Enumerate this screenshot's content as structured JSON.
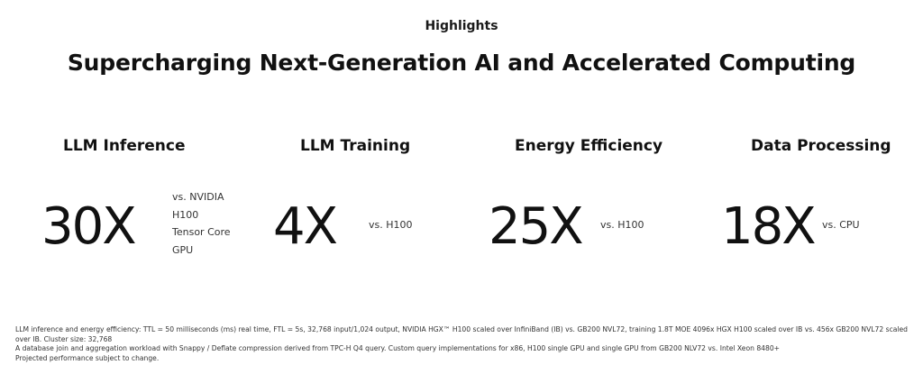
{
  "header": {
    "eyebrow": "Highlights",
    "headline": "Supercharging Next-Generation AI and Accelerated Computing"
  },
  "metrics": [
    {
      "title": "LLM Inference",
      "value": "30X",
      "compare": "vs. NVIDIA H100 Tensor Core GPU"
    },
    {
      "title": "LLM Training",
      "value": "4X",
      "compare": "vs. H100"
    },
    {
      "title": "Energy Efficiency",
      "value": "25X",
      "compare": "vs. H100"
    },
    {
      "title": "Data Processing",
      "value": "18X",
      "compare": "vs. CPU"
    }
  ],
  "footnotes": {
    "line1": "LLM inference and energy efficiency: TTL = 50 milliseconds (ms) real time, FTL = 5s, 32,768 input/1,024 output, NVIDIA HGX™ H100 scaled over InfiniBand (IB) vs. GB200 NVL72, training 1.8T MOE 4096x HGX H100 scaled over IB vs. 456x GB200 NVL72 scaled over IB. Cluster size: 32,768",
    "line2": "A database join and aggregation workload with Snappy / Deflate compression derived from TPC-H Q4 query. Custom query implementations for x86, H100 single GPU and single GPU from GB200 NLV72 vs. Intel Xeon 8480+",
    "line3": "Projected performance subject to change."
  }
}
